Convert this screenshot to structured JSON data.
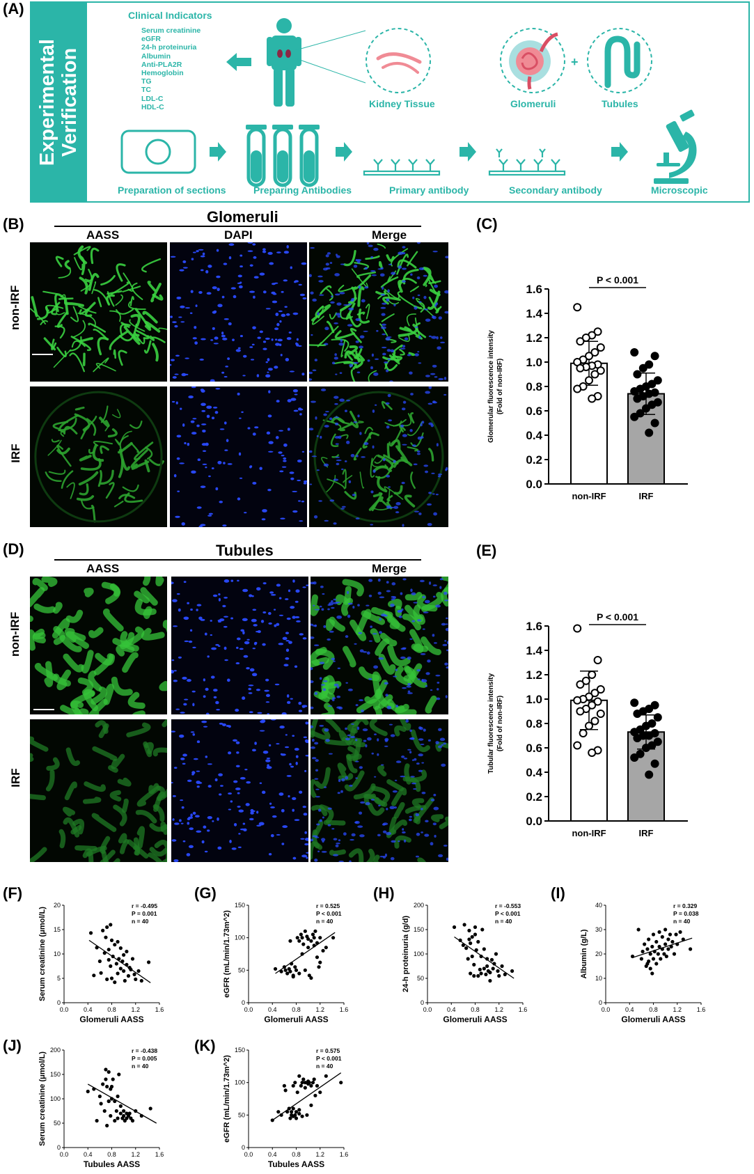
{
  "panels": {
    "A": "(A)",
    "B": "(B)",
    "C": "(C)",
    "D": "(D)",
    "E": "(E)",
    "F": "(F)",
    "G": "(G)",
    "H": "(H)",
    "I": "(I)",
    "J": "(J)",
    "K": "(K)"
  },
  "panelA": {
    "side_title_line1": "Experimental",
    "side_title_line2": "Verification",
    "clinical_title": "Clinical Indicators",
    "clinical_items": [
      "Serum creatinine",
      "eGFR",
      "24-h proteinuria",
      "Albumin",
      "Anti-PLA2R",
      "Hemoglobin",
      "TG",
      "TC",
      "LDL-C",
      "HDL-C"
    ],
    "kidney_tissue": "Kidney Tissue",
    "glomeruli": "Glomeruli",
    "tubules": "Tubules",
    "plus": "+",
    "steps": [
      "Preparation of sections",
      "Preparing Antibodies",
      "Primary antibody",
      "Secondary antibody",
      "Microscopic"
    ],
    "teal_color": "#2bb5a8"
  },
  "panelB": {
    "title": "Glomeruli",
    "columns": [
      "AASS",
      "DAPI",
      "Merge"
    ],
    "rows": [
      "non-IRF",
      "IRF"
    ]
  },
  "panelD": {
    "title": "Tubules",
    "columns": [
      "AASS",
      "Merge"
    ],
    "rows": [
      "non-IRF",
      "IRF"
    ]
  },
  "chart_data": [
    {
      "panel": "C",
      "type": "bar",
      "categories": [
        "non-IRF",
        "IRF"
      ],
      "values": [
        0.99,
        0.74
      ],
      "errors": [
        0.18,
        0.17
      ],
      "bar_colors": [
        "#ffffff",
        "#a6a6a6"
      ],
      "ylabel_line1": "Glomerular fluorescence intensity",
      "ylabel_line2": "(Fold of non-IRF)",
      "ylim": [
        0,
        1.6
      ],
      "yticks": [
        0.0,
        0.2,
        0.4,
        0.6,
        0.8,
        1.0,
        1.2,
        1.4,
        1.6
      ],
      "annotation": "P < 0.001",
      "points": [
        [
          1.45,
          1.25,
          1.22,
          1.2,
          1.17,
          1.12,
          1.08,
          1.05,
          1.02,
          1.0,
          0.98,
          0.97,
          0.96,
          0.95,
          0.93,
          0.9,
          0.85,
          0.8,
          0.78,
          0.72,
          0.7
        ],
        [
          1.08,
          1.05,
          0.98,
          0.95,
          0.9,
          0.85,
          0.82,
          0.8,
          0.78,
          0.76,
          0.75,
          0.74,
          0.72,
          0.7,
          0.67,
          0.65,
          0.62,
          0.58,
          0.55,
          0.5,
          0.42
        ]
      ]
    },
    {
      "panel": "E",
      "type": "bar",
      "categories": [
        "non-IRF",
        "IRF"
      ],
      "values": [
        0.99,
        0.73
      ],
      "errors": [
        0.24,
        0.14
      ],
      "bar_colors": [
        "#ffffff",
        "#a6a6a6"
      ],
      "ylabel_line1": "Tubular fluorescence intensity",
      "ylabel_line2": "(Fold of non-IRF)",
      "ylim": [
        0,
        1.6
      ],
      "yticks": [
        0.0,
        0.2,
        0.4,
        0.6,
        0.8,
        1.0,
        1.2,
        1.4,
        1.6
      ],
      "annotation": "P < 0.001",
      "points": [
        [
          1.58,
          1.32,
          1.2,
          1.15,
          1.12,
          1.08,
          1.05,
          1.02,
          1.0,
          0.99,
          0.98,
          0.95,
          0.92,
          0.9,
          0.88,
          0.82,
          0.78,
          0.72,
          0.62,
          0.58,
          0.56
        ],
        [
          0.97,
          0.95,
          0.92,
          0.9,
          0.88,
          0.85,
          0.8,
          0.78,
          0.75,
          0.73,
          0.72,
          0.7,
          0.7,
          0.68,
          0.65,
          0.62,
          0.6,
          0.55,
          0.52,
          0.47,
          0.38
        ]
      ]
    },
    {
      "panel": "F",
      "type": "scatter",
      "xlabel": "Glomeruli AASS",
      "ylabel": "Serum creatinine (μmol/L)",
      "xlim": [
        0,
        1.6
      ],
      "ylim": [
        0,
        20
      ],
      "xticks": [
        0.0,
        0.4,
        0.8,
        1.2,
        1.6
      ],
      "yticks": [
        0,
        5,
        10,
        15,
        20
      ],
      "stats": [
        "r = -0.495",
        "P = 0.001",
        "n = 40"
      ],
      "fit": [
        [
          0.42,
          12.8
        ],
        [
          1.45,
          4.1
        ]
      ],
      "x": [
        0.45,
        0.55,
        0.6,
        0.62,
        0.65,
        0.68,
        0.7,
        0.72,
        0.72,
        0.75,
        0.75,
        0.78,
        0.78,
        0.8,
        0.8,
        0.82,
        0.85,
        0.85,
        0.88,
        0.9,
        0.9,
        0.92,
        0.95,
        0.95,
        0.98,
        1.0,
        1.0,
        1.02,
        1.05,
        1.05,
        1.08,
        1.1,
        1.12,
        1.15,
        1.18,
        1.2,
        1.25,
        1.3,
        1.42,
        0.5
      ],
      "y": [
        14.3,
        11.3,
        8.5,
        6.1,
        14.8,
        10.2,
        13.4,
        15.5,
        4.8,
        10.9,
        8.8,
        16.0,
        7.5,
        12.8,
        5.0,
        9.5,
        11.9,
        4.2,
        8.0,
        12.5,
        6.0,
        9.0,
        7.0,
        11.2,
        8.5,
        6.5,
        9.8,
        4.5,
        7.8,
        10.5,
        5.5,
        7.2,
        6.8,
        9.0,
        5.8,
        4.8,
        6.5,
        4.5,
        8.3,
        5.6
      ]
    },
    {
      "panel": "G",
      "type": "scatter",
      "xlabel": "Glomeruli AASS",
      "ylabel": "eGFR (mL/min/1.73m^2)",
      "xlim": [
        0,
        1.6
      ],
      "ylim": [
        0,
        150
      ],
      "xticks": [
        0.0,
        0.4,
        0.8,
        1.2,
        1.6
      ],
      "yticks": [
        0,
        50,
        100,
        150
      ],
      "stats": [
        "r = 0.525",
        "P < 0.001",
        "n = 40"
      ],
      "fit": [
        [
          0.45,
          45
        ],
        [
          1.45,
          108
        ]
      ],
      "x": [
        0.45,
        0.55,
        0.6,
        0.62,
        0.65,
        0.68,
        0.7,
        0.72,
        0.75,
        0.78,
        0.8,
        0.82,
        0.85,
        0.85,
        0.88,
        0.9,
        0.9,
        0.92,
        0.95,
        0.95,
        0.98,
        1.0,
        1.0,
        1.02,
        1.05,
        1.05,
        1.08,
        1.1,
        1.1,
        1.12,
        1.15,
        1.15,
        1.18,
        1.2,
        1.2,
        1.25,
        1.3,
        1.42,
        0.7,
        0.75
      ],
      "y": [
        52,
        48,
        55,
        50,
        45,
        52,
        48,
        60,
        42,
        55,
        50,
        100,
        95,
        45,
        105,
        75,
        100,
        90,
        110,
        50,
        102,
        85,
        98,
        42,
        95,
        38,
        105,
        100,
        88,
        110,
        92,
        70,
        55,
        100,
        62,
        80,
        85,
        100,
        95,
        40
      ]
    },
    {
      "panel": "H",
      "type": "scatter",
      "xlabel": "Glomeruli AASS",
      "ylabel": "24-h proteinuria (g/d)",
      "xlim": [
        0,
        1.6
      ],
      "ylim": [
        0,
        200
      ],
      "xticks": [
        0.0,
        0.4,
        0.8,
        1.2,
        1.6
      ],
      "yticks": [
        0,
        50,
        100,
        150,
        200
      ],
      "stats": [
        "r = -0.553",
        "P < 0.001",
        "n = 40"
      ],
      "fit": [
        [
          0.45,
          135
        ],
        [
          1.45,
          50
        ]
      ],
      "x": [
        0.45,
        0.55,
        0.6,
        0.62,
        0.65,
        0.68,
        0.7,
        0.72,
        0.72,
        0.75,
        0.75,
        0.78,
        0.78,
        0.8,
        0.8,
        0.82,
        0.85,
        0.85,
        0.88,
        0.9,
        0.9,
        0.92,
        0.95,
        0.95,
        0.98,
        1.0,
        1.0,
        1.02,
        1.05,
        1.05,
        1.08,
        1.1,
        1.12,
        1.15,
        1.18,
        1.2,
        1.25,
        1.3,
        1.42,
        0.7
      ],
      "y": [
        155,
        128,
        118,
        160,
        112,
        90,
        148,
        122,
        60,
        135,
        95,
        78,
        55,
        155,
        140,
        108,
        125,
        55,
        68,
        95,
        60,
        150,
        70,
        110,
        58,
        90,
        75,
        65,
        62,
        45,
        88,
        70,
        80,
        100,
        65,
        55,
        75,
        58,
        65,
        130
      ]
    },
    {
      "panel": "I",
      "type": "scatter",
      "xlabel": "Glomeruli AASS",
      "ylabel": "Albumin (g/L)",
      "xlim": [
        0,
        1.6
      ],
      "ylim": [
        0,
        40
      ],
      "xticks": [
        0.0,
        0.4,
        0.8,
        1.2,
        1.6
      ],
      "yticks": [
        0,
        10,
        20,
        30,
        40
      ],
      "stats": [
        "r = 0.329",
        "P = 0.038",
        "n = 40"
      ],
      "fit": [
        [
          0.45,
          18.5
        ],
        [
          1.45,
          26.5
        ]
      ],
      "x": [
        0.45,
        0.55,
        0.6,
        0.62,
        0.65,
        0.68,
        0.7,
        0.72,
        0.72,
        0.75,
        0.75,
        0.78,
        0.78,
        0.8,
        0.8,
        0.82,
        0.85,
        0.85,
        0.88,
        0.9,
        0.9,
        0.92,
        0.95,
        0.95,
        0.98,
        1.0,
        1.0,
        1.02,
        1.05,
        1.05,
        1.08,
        1.1,
        1.12,
        1.15,
        1.18,
        1.2,
        1.25,
        1.3,
        1.42,
        0.7
      ],
      "y": [
        19,
        30,
        18,
        21,
        24,
        15,
        22,
        17,
        26,
        14,
        20,
        12,
        23,
        28,
        18,
        21,
        16,
        25,
        20,
        29,
        23,
        18,
        27,
        22,
        20,
        24,
        30,
        19,
        26,
        22,
        28,
        23,
        25,
        20,
        28,
        24,
        29,
        26,
        22,
        16
      ]
    },
    {
      "panel": "J",
      "type": "scatter",
      "xlabel": "Tubules AASS",
      "ylabel": "Serum creatinine (μmol/L)",
      "xlim": [
        0,
        1.6
      ],
      "ylim": [
        0,
        200
      ],
      "xticks": [
        0.0,
        0.4,
        0.8,
        1.2,
        1.6
      ],
      "yticks": [
        0,
        50,
        100,
        150,
        200
      ],
      "stats": [
        "r = -0.438",
        "P = 0.005",
        "n = 40"
      ],
      "fit": [
        [
          0.4,
          130
        ],
        [
          1.55,
          50
        ]
      ],
      "x": [
        0.4,
        0.5,
        0.55,
        0.6,
        0.62,
        0.65,
        0.68,
        0.7,
        0.72,
        0.72,
        0.75,
        0.75,
        0.78,
        0.78,
        0.8,
        0.8,
        0.82,
        0.85,
        0.85,
        0.88,
        0.9,
        0.9,
        0.92,
        0.95,
        0.95,
        0.98,
        1.0,
        1.0,
        1.02,
        1.05,
        1.05,
        1.08,
        1.1,
        1.12,
        1.15,
        1.2,
        1.3,
        1.45,
        0.7,
        0.75
      ],
      "y": [
        115,
        120,
        55,
        105,
        90,
        130,
        75,
        160,
        125,
        45,
        155,
        95,
        120,
        65,
        100,
        125,
        140,
        55,
        95,
        75,
        105,
        60,
        150,
        70,
        85,
        60,
        75,
        65,
        55,
        70,
        60,
        65,
        70,
        60,
        55,
        75,
        65,
        80,
        140,
        95
      ]
    },
    {
      "panel": "K",
      "type": "scatter",
      "xlabel": "Tubules AASS",
      "ylabel": "eGFR (mL/min/1.73m^2)",
      "xlim": [
        0,
        1.6
      ],
      "ylim": [
        0,
        150
      ],
      "xticks": [
        0.0,
        0.4,
        0.8,
        1.2,
        1.6
      ],
      "yticks": [
        0,
        50,
        100,
        150
      ],
      "stats": [
        "r = 0.575",
        "P < 0.001",
        "n = 40"
      ],
      "fit": [
        [
          0.4,
          42
        ],
        [
          1.55,
          115
        ]
      ],
      "x": [
        0.4,
        0.5,
        0.55,
        0.6,
        0.62,
        0.65,
        0.68,
        0.7,
        0.72,
        0.72,
        0.75,
        0.75,
        0.78,
        0.78,
        0.8,
        0.8,
        0.82,
        0.85,
        0.85,
        0.88,
        0.9,
        0.9,
        0.92,
        0.95,
        0.95,
        0.98,
        1.0,
        1.0,
        1.02,
        1.05,
        1.05,
        1.08,
        1.1,
        1.12,
        1.15,
        1.2,
        1.3,
        1.55,
        0.75,
        0.85
      ],
      "y": [
        42,
        55,
        50,
        95,
        88,
        55,
        60,
        45,
        50,
        55,
        95,
        60,
        50,
        100,
        55,
        45,
        85,
        110,
        52,
        95,
        100,
        48,
        105,
        92,
        100,
        50,
        98,
        102,
        100,
        95,
        65,
        100,
        105,
        80,
        95,
        85,
        110,
        100,
        48,
        58
      ]
    }
  ]
}
